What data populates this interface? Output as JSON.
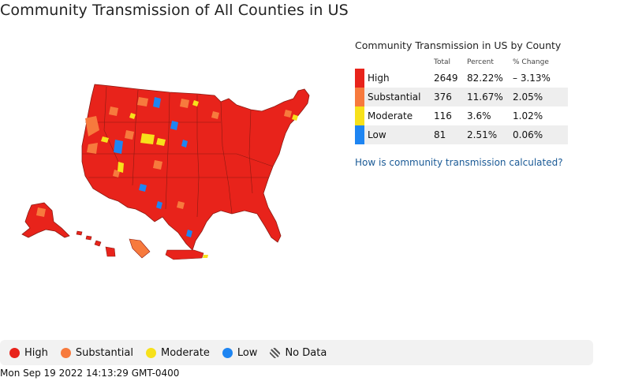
{
  "title": "Community Transmission of All Counties in US",
  "colors": {
    "high": "#e8231b",
    "substantial": "#f77a3d",
    "moderate": "#f7e11b",
    "low": "#1e85f2",
    "boundary": "#8b1a12"
  },
  "table": {
    "title": "Community Transmission in US by County",
    "headers": {
      "total": "Total",
      "percent": "Percent",
      "change": "% Change"
    },
    "rows": [
      {
        "level": "High",
        "total": "2649",
        "percent": "82.22%",
        "change": "– 3.13%",
        "color": "#e8231b"
      },
      {
        "level": "Substantial",
        "total": "376",
        "percent": "11.67%",
        "change": "2.05%",
        "color": "#f77a3d"
      },
      {
        "level": "Moderate",
        "total": "116",
        "percent": "3.6%",
        "change": "1.02%",
        "color": "#f7e11b"
      },
      {
        "level": "Low",
        "total": "81",
        "percent": "2.51%",
        "change": "0.06%",
        "color": "#1e85f2"
      }
    ]
  },
  "link_text": "How is community transmission calculated?",
  "legend": {
    "high": "High",
    "substantial": "Substantial",
    "moderate": "Moderate",
    "low": "Low",
    "nodata": "No Data"
  },
  "timestamp": "Mon Sep 19 2022 14:13:29 GMT-0400"
}
